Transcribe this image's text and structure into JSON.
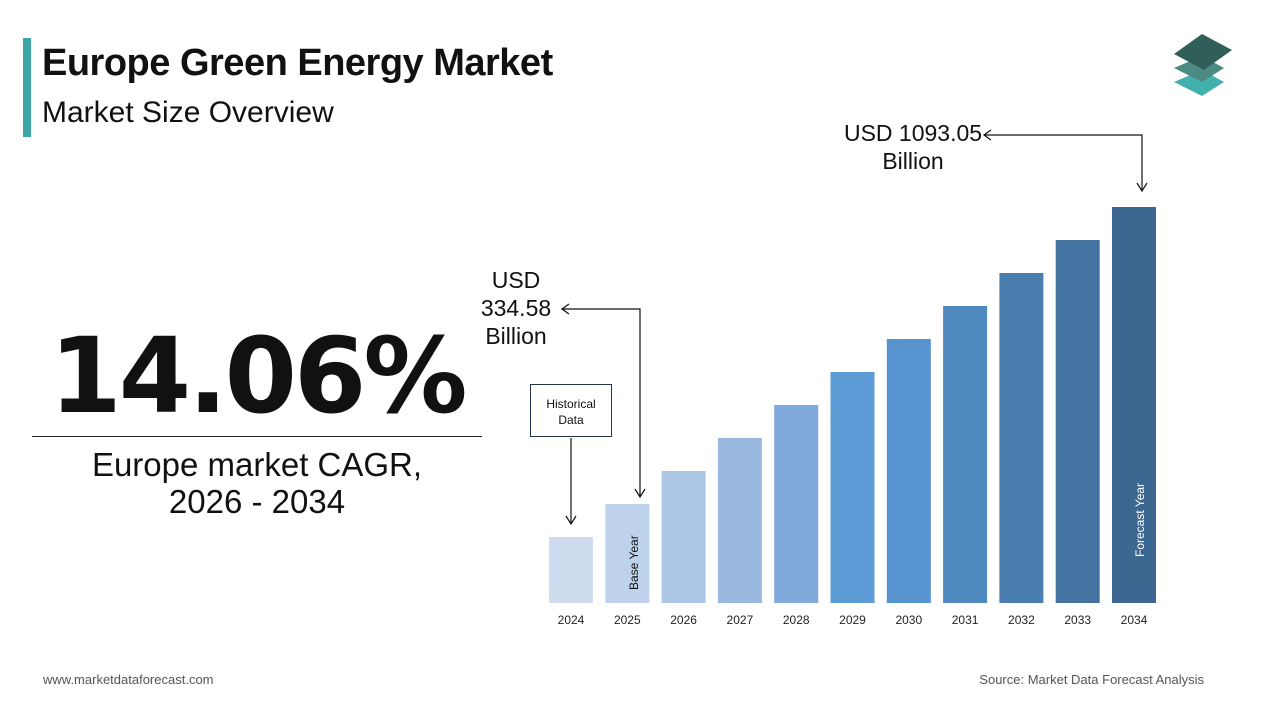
{
  "header": {
    "title": "Europe Green Energy Market",
    "subtitle": "Market Size Overview"
  },
  "kpi": {
    "value": "14.06%",
    "label_line1": "Europe market CAGR,",
    "label_line2": "2026 - 2034"
  },
  "annotations": {
    "base": {
      "line1": "USD",
      "line2": "334.58",
      "line3": "Billion"
    },
    "forecast": {
      "line1": "USD 1093.05",
      "line2": "Billion"
    },
    "historical_line1": "Historical",
    "historical_line2": "Data",
    "base_year": "Base Year",
    "forecast_year": "Forecast Year"
  },
  "footer": {
    "website": "www.marketdataforecast.com",
    "source": "Source: Market Data Forecast Analysis"
  },
  "logo": {
    "icon": "stacked-layers-logo",
    "colors": [
      "#2f5f58",
      "#4d8a82",
      "#42b0ad"
    ]
  },
  "chart_data": {
    "type": "bar",
    "categories": [
      "2024",
      "2025",
      "2026",
      "2027",
      "2028",
      "2029",
      "2030",
      "2031",
      "2032",
      "2033",
      "2034"
    ],
    "values": [
      null,
      334.58,
      null,
      null,
      null,
      null,
      null,
      null,
      null,
      null,
      1093.05
    ],
    "unit": "USD Billion",
    "colors": [
      "#cfdcef",
      "#bfd2ec",
      "#aec6e6",
      "#98b8e0",
      "#80aadc",
      "#5d9bd6",
      "#5693cf",
      "#4f89bd",
      "#4a7eb0",
      "#4473a2",
      "#3b6790"
    ],
    "grid": false,
    "legend": "none"
  }
}
